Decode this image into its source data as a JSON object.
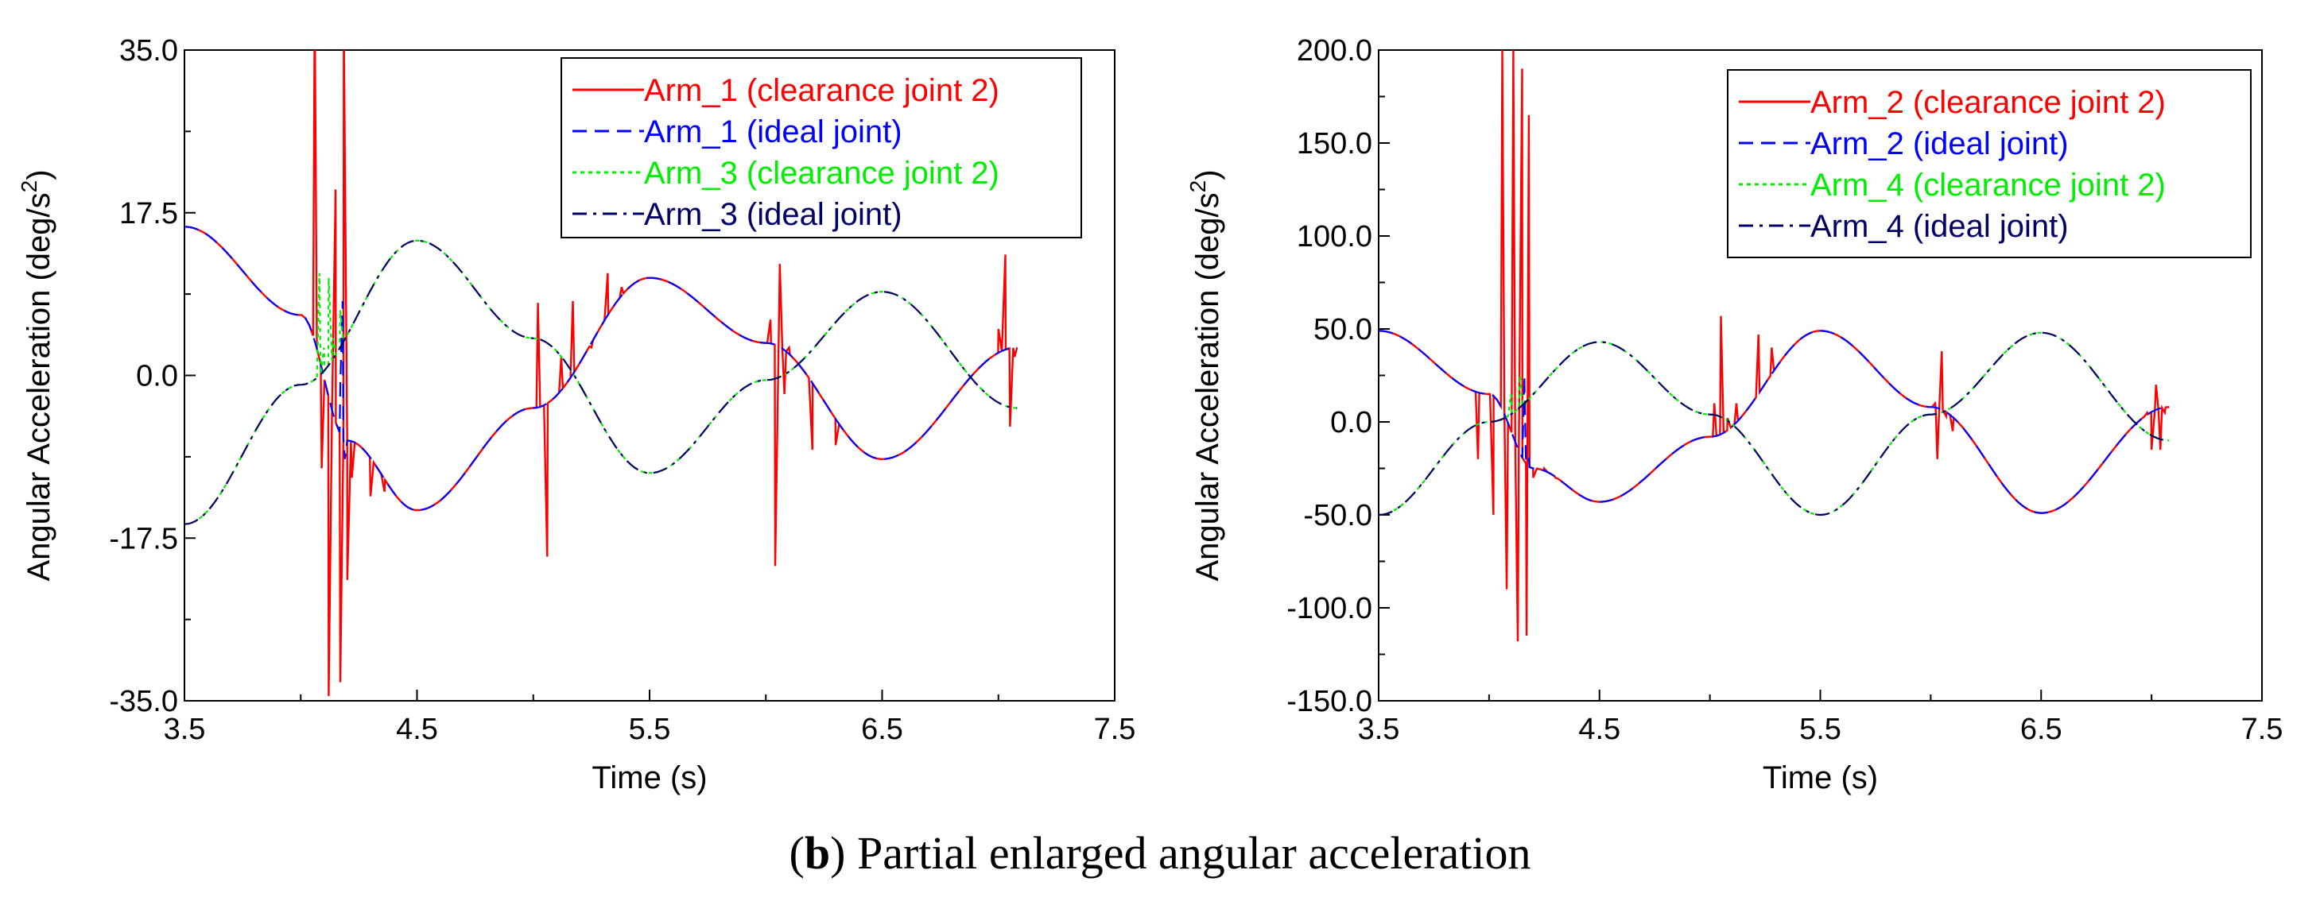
{
  "caption": {
    "letter": "b",
    "text": "Partial enlarged angular acceleration"
  },
  "chart_data": [
    {
      "type": "line",
      "title": "",
      "xlabel": "Time (s)",
      "ylabel": "Angular Acceleration (deg/s",
      "ylabel_sup": "2",
      "ylabel_close": ")",
      "xlim": [
        3.5,
        7.5
      ],
      "ylim": [
        -35.0,
        35.0
      ],
      "xticks": [
        3.5,
        4.5,
        5.5,
        6.5,
        7.5
      ],
      "xtick_labels": [
        "3.5",
        "4.5",
        "5.5",
        "6.5",
        "7.5"
      ],
      "yticks": [
        -35.0,
        -17.5,
        0.0,
        17.5,
        35.0
      ],
      "ytick_labels": [
        "-35.0",
        "-17.5",
        "0.0",
        "17.5",
        "35.0"
      ],
      "grid": false,
      "legend_position": "top-right",
      "series": [
        {
          "name": "Arm_1 (clearance joint 2)",
          "color": "#ff0000",
          "style": "solid",
          "base": "armA",
          "spikes": [
            [
              4.06,
              40
            ],
            [
              4.09,
              -10
            ],
            [
              4.12,
              -34.5
            ],
            [
              4.15,
              20
            ],
            [
              4.17,
              -33
            ],
            [
              4.185,
              38
            ],
            [
              4.2,
              -22
            ],
            [
              4.22,
              -11
            ],
            [
              4.3,
              -13
            ],
            [
              4.36,
              -12.5
            ],
            [
              5.02,
              7.8
            ],
            [
              5.06,
              -19.5
            ],
            [
              5.12,
              2
            ],
            [
              5.17,
              8
            ],
            [
              5.25,
              3
            ],
            [
              5.32,
              11
            ],
            [
              5.38,
              9.5
            ],
            [
              6.02,
              6
            ],
            [
              6.04,
              -20.5
            ],
            [
              6.06,
              12
            ],
            [
              6.08,
              -2
            ],
            [
              6.1,
              3
            ],
            [
              6.2,
              -8
            ],
            [
              6.3,
              -7.5
            ],
            [
              7.0,
              5
            ],
            [
              7.03,
              13
            ],
            [
              7.05,
              -5.5
            ],
            [
              7.07,
              2
            ]
          ]
        },
        {
          "name": "Arm_1 (ideal joint)",
          "color": "#0000ff",
          "style": "dashed",
          "base": "armA",
          "spikes": [
            [
              4.17,
              -1
            ],
            [
              4.18,
              8
            ],
            [
              4.19,
              -9
            ]
          ]
        },
        {
          "name": "Arm_3 (clearance joint 2)",
          "color": "#00ee00",
          "style": "dotted",
          "base": "armB",
          "spikes": [
            [
              4.08,
              11
            ],
            [
              4.1,
              3
            ],
            [
              4.12,
              10.5
            ],
            [
              4.14,
              4
            ],
            [
              4.17,
              7
            ]
          ]
        },
        {
          "name": "Arm_3 (ideal joint)",
          "color": "#000066",
          "style": "dashdot",
          "base": "armB",
          "spikes": []
        }
      ],
      "bases": {
        "armA": {
          "x_end": 7.08,
          "points": [
            [
              3.5,
              16.0
            ],
            [
              4.0,
              6.5
            ],
            [
              4.2,
              -7.0
            ],
            [
              4.5,
              -14.5
            ],
            [
              5.0,
              -3.5
            ],
            [
              5.5,
              10.5
            ],
            [
              6.0,
              3.5
            ],
            [
              6.5,
              -9.0
            ],
            [
              7.08,
              3.0
            ]
          ]
        },
        "armB": {
          "x_end": 7.08,
          "points": [
            [
              3.5,
              -16.0
            ],
            [
              4.0,
              -1.0
            ],
            [
              4.5,
              14.5
            ],
            [
              5.0,
              4.0
            ],
            [
              5.5,
              -10.5
            ],
            [
              6.0,
              -0.5
            ],
            [
              6.5,
              9.0
            ],
            [
              7.08,
              -3.5
            ]
          ]
        }
      }
    },
    {
      "type": "line",
      "title": "",
      "xlabel": "Time (s)",
      "ylabel": "Angular Acceleration (deg/s",
      "ylabel_sup": "2",
      "ylabel_close": ")",
      "xlim": [
        3.5,
        7.5
      ],
      "ylim": [
        -150.0,
        200.0
      ],
      "xticks": [
        3.5,
        4.5,
        5.5,
        6.5,
        7.5
      ],
      "xtick_labels": [
        "3.5",
        "4.5",
        "5.5",
        "6.5",
        "7.5"
      ],
      "yticks": [
        -150.0,
        -100.0,
        -50.0,
        0.0,
        50.0,
        100.0,
        150.0,
        200.0
      ],
      "ytick_labels": [
        "-150.0",
        "-100.0",
        "-50.0",
        "0.0",
        "50.0",
        "100.0",
        "150.0",
        "200.0"
      ],
      "grid": false,
      "legend_position": "top-right",
      "series": [
        {
          "name": "Arm_2 (clearance joint 2)",
          "color": "#ff0000",
          "style": "solid",
          "base": "armA",
          "spikes": [
            [
              3.95,
              -20
            ],
            [
              4.02,
              -50
            ],
            [
              4.06,
              200
            ],
            [
              4.08,
              -90
            ],
            [
              4.11,
              200
            ],
            [
              4.13,
              -118
            ],
            [
              4.15,
              190
            ],
            [
              4.17,
              -115
            ],
            [
              4.18,
              165
            ],
            [
              4.2,
              -30
            ],
            [
              4.25,
              -25
            ],
            [
              4.3,
              -30
            ],
            [
              5.02,
              10
            ],
            [
              5.05,
              57
            ],
            [
              5.08,
              2
            ],
            [
              5.12,
              10
            ],
            [
              5.22,
              47
            ],
            [
              5.28,
              40
            ],
            [
              6.02,
              10
            ],
            [
              6.03,
              -20
            ],
            [
              6.05,
              38
            ],
            [
              6.07,
              3
            ],
            [
              6.1,
              -5
            ],
            [
              6.98,
              5
            ],
            [
              7.0,
              -15
            ],
            [
              7.02,
              20
            ],
            [
              7.04,
              -15
            ],
            [
              7.06,
              5
            ]
          ]
        },
        {
          "name": "Arm_2 (ideal joint)",
          "color": "#0000ff",
          "style": "dashed",
          "base": "armA",
          "spikes": [
            [
              4.16,
              25
            ],
            [
              4.18,
              -20
            ]
          ]
        },
        {
          "name": "Arm_4 (clearance joint 2)",
          "color": "#00ee00",
          "style": "dotted",
          "base": "armB",
          "spikes": [
            [
              4.1,
              15
            ],
            [
              4.14,
              25
            ],
            [
              4.17,
              10
            ]
          ]
        },
        {
          "name": "Arm_4 (ideal joint)",
          "color": "#000066",
          "style": "dashdot",
          "base": "armB",
          "spikes": []
        }
      ],
      "bases": {
        "armA": {
          "x_end": 7.08,
          "points": [
            [
              3.5,
              49.0
            ],
            [
              4.0,
              15.0
            ],
            [
              4.2,
              -25.0
            ],
            [
              4.5,
              -43.0
            ],
            [
              5.0,
              -8.0
            ],
            [
              5.5,
              49.0
            ],
            [
              6.0,
              8.0
            ],
            [
              6.5,
              -49.0
            ],
            [
              7.08,
              8.0
            ]
          ]
        },
        "armB": {
          "x_end": 7.08,
          "points": [
            [
              3.5,
              -50.0
            ],
            [
              4.0,
              0.0
            ],
            [
              4.5,
              43.0
            ],
            [
              5.0,
              4.0
            ],
            [
              5.5,
              -50.0
            ],
            [
              6.0,
              4.0
            ],
            [
              6.5,
              48.0
            ],
            [
              7.08,
              -10.0
            ]
          ]
        }
      }
    }
  ]
}
